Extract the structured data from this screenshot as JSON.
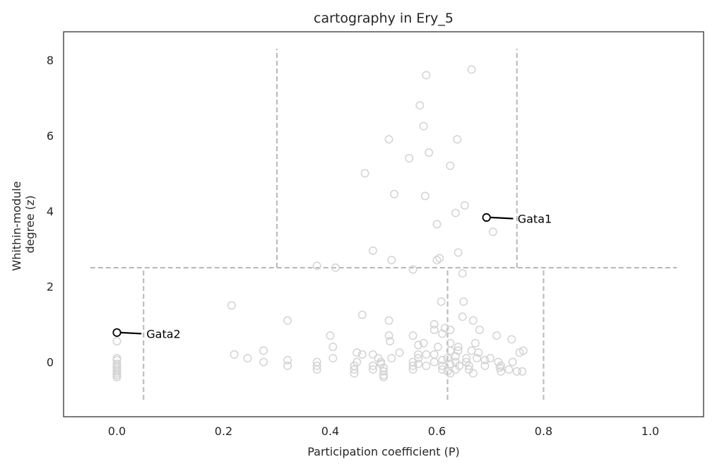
{
  "chart_data": {
    "type": "scatter",
    "title": "cartography in Ery_5",
    "xlabel": "Participation coefficient (P)",
    "ylabel_lines": [
      "Whithin-module",
      "degree (z)"
    ],
    "xlim": [
      -0.1,
      1.1
    ],
    "ylim": [
      -1.45,
      8.75
    ],
    "xticks": [
      0.0,
      0.2,
      0.4,
      0.6,
      0.8,
      1.0
    ],
    "xtick_labels": [
      "0.0",
      "0.2",
      "0.4",
      "0.6",
      "0.8",
      "1.0"
    ],
    "yticks": [
      0,
      2,
      4,
      6,
      8
    ],
    "ytick_labels": [
      "0",
      "2",
      "4",
      "6",
      "8"
    ],
    "grid": false,
    "colors": {
      "points": "#d3d3d3",
      "highlight": "#000000",
      "guides": "#b8b8b8",
      "frame": "#333333"
    },
    "guide_lines": [
      {
        "x1": -0.05,
        "y1": 2.5,
        "x2": 1.05,
        "y2": 2.5
      },
      {
        "x1": 0.05,
        "y1": -1.0,
        "x2": 0.05,
        "y2": 2.5
      },
      {
        "x1": 0.62,
        "y1": -1.0,
        "x2": 0.62,
        "y2": 2.5
      },
      {
        "x1": 0.8,
        "y1": -1.0,
        "x2": 0.8,
        "y2": 2.5
      },
      {
        "x1": 0.3,
        "y1": 2.5,
        "x2": 0.3,
        "y2": 8.3
      },
      {
        "x1": 0.75,
        "y1": 2.5,
        "x2": 0.75,
        "y2": 8.3
      }
    ],
    "points": [
      [
        0.0,
        0.55
      ],
      [
        0.0,
        0.1
      ],
      [
        0.0,
        0.05
      ],
      [
        0.0,
        -0.05
      ],
      [
        0.0,
        -0.1
      ],
      [
        0.0,
        -0.15
      ],
      [
        0.0,
        -0.2
      ],
      [
        0.0,
        -0.25
      ],
      [
        0.0,
        -0.3
      ],
      [
        0.0,
        -0.35
      ],
      [
        0.0,
        -0.4
      ],
      [
        0.215,
        1.5
      ],
      [
        0.22,
        0.2
      ],
      [
        0.245,
        0.1
      ],
      [
        0.275,
        0.3
      ],
      [
        0.275,
        0.0
      ],
      [
        0.32,
        1.1
      ],
      [
        0.32,
        0.05
      ],
      [
        0.32,
        -0.1
      ],
      [
        0.375,
        2.55
      ],
      [
        0.375,
        0.0
      ],
      [
        0.375,
        -0.1
      ],
      [
        0.375,
        -0.2
      ],
      [
        0.4,
        0.7
      ],
      [
        0.405,
        0.4
      ],
      [
        0.405,
        0.1
      ],
      [
        0.41,
        2.5
      ],
      [
        0.445,
        -0.1
      ],
      [
        0.445,
        -0.2
      ],
      [
        0.445,
        -0.3
      ],
      [
        0.45,
        0.25
      ],
      [
        0.45,
        0.0
      ],
      [
        0.46,
        0.2
      ],
      [
        0.46,
        1.25
      ],
      [
        0.465,
        5.0
      ],
      [
        0.48,
        2.95
      ],
      [
        0.48,
        0.2
      ],
      [
        0.48,
        -0.1
      ],
      [
        0.48,
        -0.2
      ],
      [
        0.49,
        0.1
      ],
      [
        0.495,
        0.0
      ],
      [
        0.495,
        -0.05
      ],
      [
        0.5,
        -0.15
      ],
      [
        0.5,
        -0.25
      ],
      [
        0.5,
        -0.35
      ],
      [
        0.5,
        -0.4
      ],
      [
        0.51,
        5.9
      ],
      [
        0.51,
        1.1
      ],
      [
        0.51,
        0.7
      ],
      [
        0.512,
        0.55
      ],
      [
        0.515,
        2.7
      ],
      [
        0.515,
        0.1
      ],
      [
        0.52,
        4.45
      ],
      [
        0.53,
        0.25
      ],
      [
        0.548,
        5.4
      ],
      [
        0.555,
        2.45
      ],
      [
        0.555,
        0.7
      ],
      [
        0.555,
        0.0
      ],
      [
        0.555,
        -0.1
      ],
      [
        0.555,
        -0.2
      ],
      [
        0.565,
        0.45
      ],
      [
        0.565,
        0.2
      ],
      [
        0.565,
        0.1
      ],
      [
        0.565,
        -0.05
      ],
      [
        0.568,
        6.8
      ],
      [
        0.575,
        6.25
      ],
      [
        0.575,
        0.5
      ],
      [
        0.578,
        4.4
      ],
      [
        0.58,
        7.6
      ],
      [
        0.58,
        0.2
      ],
      [
        0.58,
        -0.1
      ],
      [
        0.585,
        5.55
      ],
      [
        0.595,
        1.0
      ],
      [
        0.595,
        0.85
      ],
      [
        0.595,
        0.2
      ],
      [
        0.595,
        0.0
      ],
      [
        0.6,
        3.65
      ],
      [
        0.6,
        2.7
      ],
      [
        0.602,
        0.4
      ],
      [
        0.605,
        2.75
      ],
      [
        0.608,
        1.6
      ],
      [
        0.61,
        0.75
      ],
      [
        0.61,
        0.05
      ],
      [
        0.61,
        -0.1
      ],
      [
        0.61,
        -0.2
      ],
      [
        0.615,
        0.9
      ],
      [
        0.62,
        0.1
      ],
      [
        0.62,
        -0.25
      ],
      [
        0.625,
        0.85
      ],
      [
        0.625,
        0.5
      ],
      [
        0.625,
        5.2
      ],
      [
        0.625,
        0.3
      ],
      [
        0.625,
        -0.05
      ],
      [
        0.625,
        -0.3
      ],
      [
        0.635,
        3.95
      ],
      [
        0.635,
        0.15
      ],
      [
        0.635,
        0.0
      ],
      [
        0.635,
        -0.2
      ],
      [
        0.638,
        5.9
      ],
      [
        0.64,
        2.9
      ],
      [
        0.64,
        0.4
      ],
      [
        0.64,
        0.3
      ],
      [
        0.642,
        -0.1
      ],
      [
        0.648,
        2.35
      ],
      [
        0.648,
        1.2
      ],
      [
        0.65,
        1.6
      ],
      [
        0.652,
        4.15
      ],
      [
        0.655,
        0.1
      ],
      [
        0.655,
        0.0
      ],
      [
        0.66,
        -0.1
      ],
      [
        0.66,
        -0.2
      ],
      [
        0.665,
        7.75
      ],
      [
        0.665,
        0.3
      ],
      [
        0.668,
        1.1
      ],
      [
        0.668,
        -0.3
      ],
      [
        0.672,
        0.5
      ],
      [
        0.675,
        0.1
      ],
      [
        0.678,
        0.25
      ],
      [
        0.68,
        0.85
      ],
      [
        0.69,
        0.05
      ],
      [
        0.69,
        -0.1
      ],
      [
        0.7,
        0.1
      ],
      [
        0.705,
        3.45
      ],
      [
        0.712,
        0.7
      ],
      [
        0.715,
        0.0
      ],
      [
        0.718,
        -0.15
      ],
      [
        0.72,
        -0.25
      ],
      [
        0.72,
        -0.1
      ],
      [
        0.735,
        -0.2
      ],
      [
        0.74,
        0.6
      ],
      [
        0.742,
        0.0
      ],
      [
        0.75,
        -0.25
      ],
      [
        0.755,
        0.25
      ],
      [
        0.76,
        -0.25
      ],
      [
        0.762,
        0.3
      ]
    ],
    "highlighted": [
      {
        "label": "Gata1",
        "x": 0.693,
        "y": 3.83,
        "text_x": 0.746,
        "text_y": 3.8,
        "line_end_x": 0.743,
        "line_end_y": 3.8
      },
      {
        "label": "Gata2",
        "x": 0.0,
        "y": 0.78,
        "text_x": 0.05,
        "text_y": 0.75,
        "line_end_x": 0.046,
        "line_end_y": 0.75
      }
    ]
  }
}
